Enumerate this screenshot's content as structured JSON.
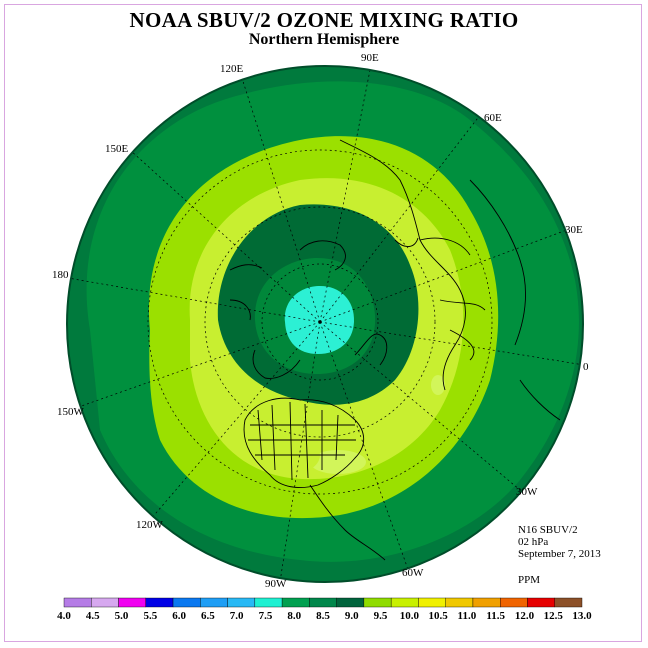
{
  "title": "NOAA SBUV/2 OZONE MIXING RATIO",
  "subtitle": "Northern Hemisphere",
  "info": {
    "instrument": "N16 SBUV/2",
    "level": "02 hPa",
    "date": "September 7, 2013",
    "unit": "PPM"
  },
  "longitude_labels": {
    "lon_90e": "90E",
    "lon_60e": "60E",
    "lon_30e": "30E",
    "lon_0": "0",
    "lon_30w": "30W",
    "lon_60w": "60W",
    "lon_90w": "90W",
    "lon_120w": "120W",
    "lon_150w": "150W",
    "lon_180": "180",
    "lon_150e": "150E",
    "lon_120e": "120E"
  },
  "colorbar": {
    "ticks": [
      "4.0",
      "4.5",
      "5.0",
      "5.5",
      "6.0",
      "6.5",
      "7.0",
      "7.5",
      "8.0",
      "8.5",
      "9.0",
      "9.5",
      "10.0",
      "10.5",
      "11.0",
      "11.5",
      "12.0",
      "12.5",
      "13.0"
    ],
    "colors": [
      "#b57ce6",
      "#d6a8ef",
      "#f000f0",
      "#0000e6",
      "#0a78f0",
      "#1e9ef5",
      "#28b9f5",
      "#1ef0d2",
      "#00a050",
      "#00874b",
      "#00643c",
      "#90dc00",
      "#c8f000",
      "#f0f000",
      "#f0c800",
      "#f0a000",
      "#f06400",
      "#e60000",
      "#8c5028"
    ]
  },
  "map_colors": {
    "edge": "#007a3d",
    "ring_outer": "#00873a",
    "ring_mid": "#9be000",
    "ring_inner": "#c8ef30",
    "ring_core": "#006b35",
    "pole": "#2cf0d4",
    "anomaly": "#d2f55a"
  }
}
